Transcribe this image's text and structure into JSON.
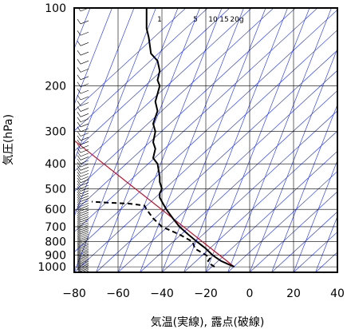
{
  "chart_data": {
    "type": "line",
    "chart_kind": "skew-T log-P sounding",
    "title": "",
    "xlabel": "気温(実線), 露点(破線)",
    "ylabel": "気圧(hPa)",
    "xlim": [
      -80,
      40
    ],
    "ylim": [
      1050,
      100
    ],
    "y_scale": "log",
    "grid": true,
    "x_ticks": [
      -80,
      -60,
      -40,
      -20,
      0,
      20,
      40
    ],
    "x_tick_labels": [
      "−80",
      "−60",
      "−40",
      "−20",
      "0",
      "20",
      "40"
    ],
    "y_ticks": [
      100,
      200,
      300,
      400,
      500,
      600,
      700,
      800,
      900,
      1000
    ],
    "y_tick_labels": [
      "100",
      "200",
      "300",
      "400",
      "500",
      "600",
      "700",
      "800",
      "900",
      "1000"
    ],
    "mixing_ratio_labels": [
      "1",
      "5",
      "10",
      "15",
      "20g"
    ],
    "mixing_ratio_values": [
      1,
      5,
      10,
      15,
      20
    ],
    "colors": {
      "temperature": "#000000",
      "dewpoint": "#000000",
      "adiabats": "#3344ee",
      "reference_line": "#c0102a",
      "grid": "#000000",
      "wind_barbs": "#000000"
    },
    "series": [
      {
        "style": "solid",
        "role": "temperature",
        "points": [
          {
            "p": 1000,
            "t": -7
          },
          {
            "p": 975,
            "t": -10
          },
          {
            "p": 950,
            "t": -13
          },
          {
            "p": 925,
            "t": -15
          },
          {
            "p": 900,
            "t": -17
          },
          {
            "p": 850,
            "t": -20
          },
          {
            "p": 800,
            "t": -24
          },
          {
            "p": 750,
            "t": -28
          },
          {
            "p": 700,
            "t": -32
          },
          {
            "p": 650,
            "t": -35
          },
          {
            "p": 600,
            "t": -38
          },
          {
            "p": 560,
            "t": -40
          },
          {
            "p": 540,
            "t": -41
          },
          {
            "p": 520,
            "t": -41
          },
          {
            "p": 500,
            "t": -40
          },
          {
            "p": 470,
            "t": -41
          },
          {
            "p": 450,
            "t": -41
          },
          {
            "p": 400,
            "t": -42
          },
          {
            "p": 380,
            "t": -44
          },
          {
            "p": 350,
            "t": -43
          },
          {
            "p": 330,
            "t": -44
          },
          {
            "p": 300,
            "t": -43
          },
          {
            "p": 280,
            "t": -44
          },
          {
            "p": 250,
            "t": -42
          },
          {
            "p": 230,
            "t": -43
          },
          {
            "p": 200,
            "t": -41
          },
          {
            "p": 190,
            "t": -42
          },
          {
            "p": 175,
            "t": -41
          },
          {
            "p": 160,
            "t": -42
          },
          {
            "p": 150,
            "t": -45
          },
          {
            "p": 130,
            "t": -46
          },
          {
            "p": 120,
            "t": -47
          },
          {
            "p": 110,
            "t": -47
          },
          {
            "p": 100,
            "t": -47
          }
        ]
      },
      {
        "style": "dashed",
        "role": "dewpoint",
        "points": [
          {
            "p": 1000,
            "t": -16
          },
          {
            "p": 975,
            "t": -18
          },
          {
            "p": 950,
            "t": -19
          },
          {
            "p": 925,
            "t": -18
          },
          {
            "p": 900,
            "t": -20
          },
          {
            "p": 850,
            "t": -25
          },
          {
            "p": 800,
            "t": -26
          },
          {
            "p": 750,
            "t": -32
          },
          {
            "p": 700,
            "t": -40
          },
          {
            "p": 650,
            "t": -44
          },
          {
            "p": 600,
            "t": -47
          },
          {
            "p": 580,
            "t": -48
          },
          {
            "p": 570,
            "t": -55
          },
          {
            "p": 565,
            "t": -65
          },
          {
            "p": 560,
            "t": -72
          }
        ]
      }
    ]
  }
}
